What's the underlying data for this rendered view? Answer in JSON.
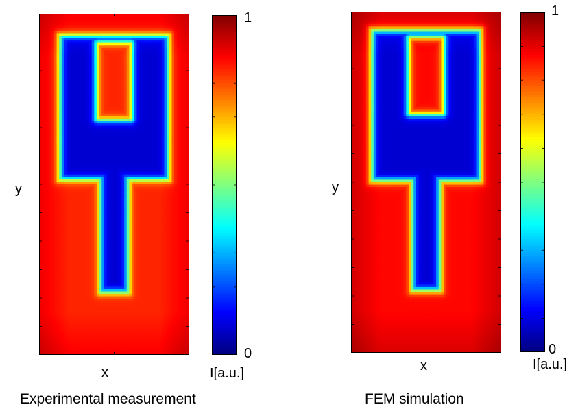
{
  "chart_data": [
    {
      "type": "heatmap",
      "title": "",
      "caption": "Experimental measurement",
      "xlabel": "x",
      "ylabel": "y",
      "colorbar": {
        "label": "I[a.u.]",
        "min_label": "0",
        "max_label": "1",
        "range": [
          0,
          1
        ],
        "colormap": "jet",
        "tick_count": 10
      },
      "shape": {
        "top_bar_outer_width": 0.74,
        "top_bar_top": 0.06,
        "shoulder_height": 0.49,
        "stem_width": 0.2,
        "stem_bottom": 0.82,
        "inner_hole_width": 0.22,
        "inner_hole_depth": 0.22,
        "min_intensity": 0.08,
        "background_intensity": 0.84
      }
    },
    {
      "type": "heatmap",
      "title": "",
      "caption": "FEM simulation",
      "xlabel": "x",
      "ylabel": "y",
      "colorbar": {
        "label": "I[a.u.]",
        "min_label": "0",
        "max_label": "1",
        "range": [
          0,
          1
        ],
        "colormap": "jet",
        "tick_count": 10
      },
      "shape": {
        "top_bar_outer_width": 0.74,
        "top_bar_top": 0.05,
        "shoulder_height": 0.5,
        "stem_width": 0.2,
        "stem_bottom": 0.82,
        "inner_hole_width": 0.22,
        "inner_hole_depth": 0.22,
        "min_intensity": 0.08,
        "background_intensity": 0.87
      }
    }
  ]
}
